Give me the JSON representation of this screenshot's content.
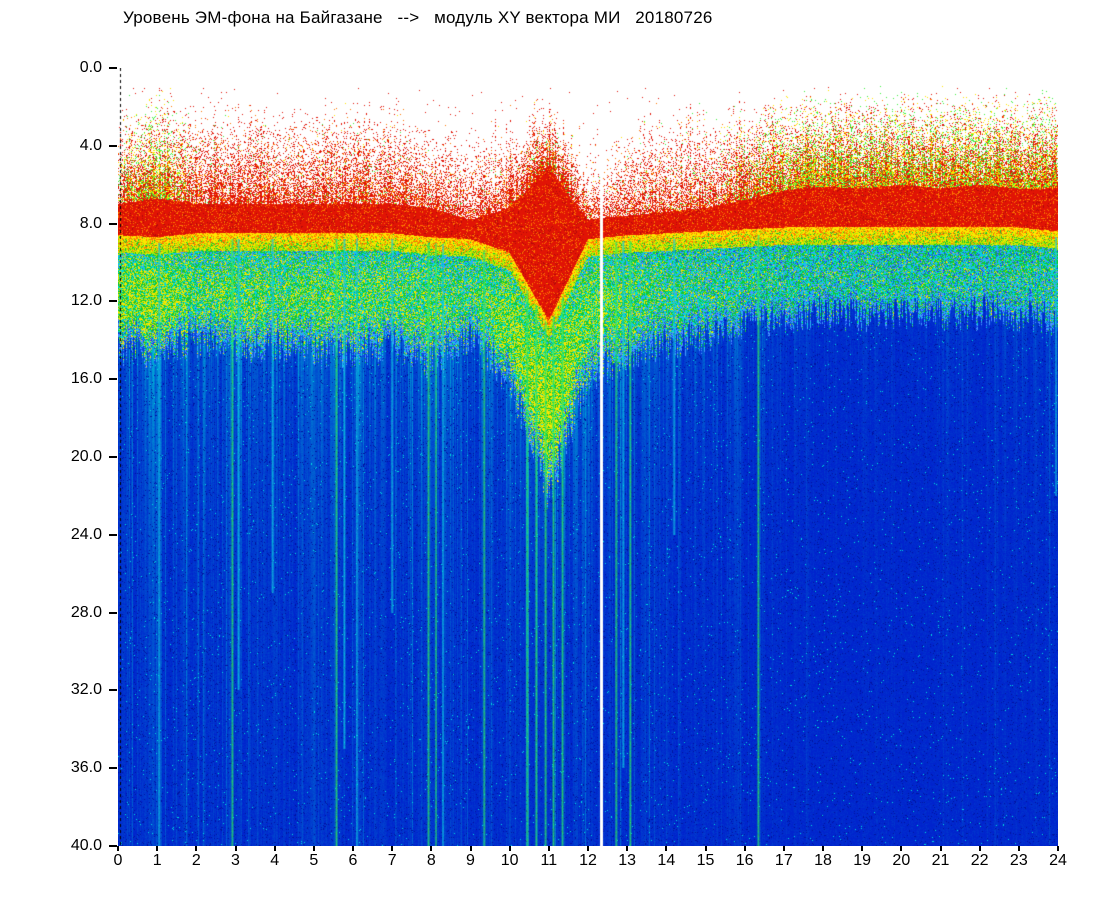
{
  "chart_data": {
    "type": "heatmap",
    "subtype": "spectrogram",
    "title": "Уровень ЭМ-фона на Байгазане   -->   модуль XY вектора МИ   20180726",
    "date": "20180726",
    "x_range": [
      0,
      24
    ],
    "y_range": [
      0,
      40
    ],
    "y_direction": "down",
    "grid": false,
    "legend": false,
    "x_ticks": [
      "0",
      "1",
      "2",
      "3",
      "4",
      "5",
      "6",
      "7",
      "8",
      "9",
      "10",
      "11",
      "12",
      "13",
      "14",
      "15",
      "16",
      "17",
      "18",
      "19",
      "20",
      "21",
      "22",
      "23",
      "24"
    ],
    "y_ticks": [
      "0.0",
      "4.0",
      "8.0",
      "12.0",
      "16.0",
      "20.0",
      "24.0",
      "28.0",
      "32.0",
      "36.0",
      "40.0"
    ],
    "palette": {
      "white": "#ffffff",
      "red": "#e11405",
      "red_dark": "#b40a0a",
      "orange": "#ff7700",
      "yellow": "#ffe600",
      "yellow_green": "#b4e600",
      "green": "#14c832",
      "green_bright": "#3cf03c",
      "cyan": "#00dcdc",
      "blue_light": "#4696ff",
      "blue": "#1446e6",
      "blue_deep": "#0023cd",
      "blue_navy": "#0014a0",
      "black": "#000000"
    },
    "profile_hours": [
      0,
      1,
      2,
      3,
      4,
      5,
      6,
      7,
      8,
      9,
      10,
      11,
      12,
      13,
      14,
      15,
      16,
      17,
      18,
      19,
      20,
      21,
      22,
      23,
      24
    ],
    "speckle_top_depth": [
      2.4,
      1.6,
      2.3,
      2.0,
      2.3,
      2.2,
      2.0,
      2.3,
      2.7,
      3.6,
      3.4,
      2.4,
      5.0,
      3.4,
      3.0,
      2.8,
      2.2,
      1.5,
      1.2,
      1.5,
      1.2,
      1.5,
      1.2,
      1.5,
      1.2
    ],
    "dense_red_top_depth": [
      7.0,
      6.7,
      7.0,
      7.0,
      7.0,
      7.0,
      7.0,
      7.0,
      7.2,
      7.8,
      7.2,
      5.2,
      7.8,
      7.6,
      7.4,
      7.2,
      6.8,
      6.3,
      6.1,
      6.2,
      6.0,
      6.2,
      6.0,
      6.2,
      6.2
    ],
    "dense_red_bottom_depth": [
      8.6,
      8.7,
      8.5,
      8.5,
      8.5,
      8.5,
      8.5,
      8.5,
      8.7,
      8.8,
      9.5,
      13.0,
      8.8,
      8.6,
      8.5,
      8.4,
      8.3,
      8.2,
      8.2,
      8.2,
      8.2,
      8.2,
      8.2,
      8.2,
      8.4
    ],
    "green_band_bottom_depth": [
      14.8,
      14.6,
      14.0,
      14.6,
      14.2,
      14.5,
      14.8,
      14.3,
      15.2,
      14.0,
      16.0,
      22.0,
      16.0,
      14.8,
      14.2,
      13.8,
      13.2,
      12.8,
      12.6,
      12.8,
      12.6,
      12.8,
      12.6,
      12.8,
      13.0
    ],
    "yellow_fraction_in_band": [
      0.45,
      0.55,
      0.28,
      0.32,
      0.28,
      0.3,
      0.32,
      0.28,
      0.28,
      0.22,
      0.45,
      0.65,
      0.38,
      0.28,
      0.18,
      0.14,
      0.12,
      0.1,
      0.08,
      0.08,
      0.08,
      0.08,
      0.08,
      0.08,
      0.1
    ],
    "upper_green_yellow_fraction": [
      0.3,
      0.55,
      0.12,
      0.06,
      0.06,
      0.06,
      0.1,
      0.06,
      0.05,
      0.04,
      0.06,
      0.15,
      0.05,
      0.06,
      0.1,
      0.12,
      0.25,
      0.5,
      0.55,
      0.5,
      0.55,
      0.5,
      0.55,
      0.5,
      0.45
    ],
    "speckle_density": [
      0.5,
      0.8,
      0.45,
      0.5,
      0.45,
      0.45,
      0.5,
      0.45,
      0.4,
      0.28,
      0.5,
      0.85,
      0.3,
      0.35,
      0.4,
      0.45,
      0.55,
      0.75,
      0.85,
      0.8,
      0.85,
      0.8,
      0.85,
      0.8,
      0.85
    ],
    "streak_strength": [
      0.8,
      0.9,
      0.7,
      0.85,
      0.75,
      0.8,
      0.85,
      0.8,
      0.95,
      0.75,
      0.95,
      1.0,
      0.85,
      0.7,
      0.6,
      0.5,
      0.45,
      0.3,
      0.25,
      0.25,
      0.22,
      0.25,
      0.22,
      0.3,
      0.4
    ],
    "strong_streaks": [
      {
        "hour": 1.05,
        "to_depth": 40,
        "color": "cyan"
      },
      {
        "hour": 2.92,
        "to_depth": 40,
        "color": "green"
      },
      {
        "hour": 3.08,
        "to_depth": 32,
        "color": "cyan"
      },
      {
        "hour": 3.95,
        "to_depth": 27,
        "color": "cyan"
      },
      {
        "hour": 5.58,
        "to_depth": 40,
        "color": "green"
      },
      {
        "hour": 5.78,
        "to_depth": 35,
        "color": "cyan"
      },
      {
        "hour": 6.1,
        "to_depth": 40,
        "color": "cyan"
      },
      {
        "hour": 7.0,
        "to_depth": 28,
        "color": "cyan"
      },
      {
        "hour": 7.93,
        "to_depth": 40,
        "color": "green"
      },
      {
        "hour": 8.12,
        "to_depth": 40,
        "color": "green"
      },
      {
        "hour": 8.3,
        "to_depth": 40,
        "color": "cyan"
      },
      {
        "hour": 9.35,
        "to_depth": 40,
        "color": "green"
      },
      {
        "hour": 10.45,
        "to_depth": 40,
        "color": "green"
      },
      {
        "hour": 10.68,
        "to_depth": 40,
        "color": "green"
      },
      {
        "hour": 10.92,
        "to_depth": 40,
        "color": "green"
      },
      {
        "hour": 11.12,
        "to_depth": 40,
        "color": "green"
      },
      {
        "hour": 11.35,
        "to_depth": 40,
        "color": "green"
      },
      {
        "hour": 12.72,
        "to_depth": 40,
        "color": "green"
      },
      {
        "hour": 12.9,
        "to_depth": 36,
        "color": "cyan"
      },
      {
        "hour": 13.08,
        "to_depth": 40,
        "color": "green"
      },
      {
        "hour": 14.2,
        "to_depth": 24,
        "color": "cyan"
      },
      {
        "hour": 16.35,
        "to_depth": 40,
        "color": "green"
      },
      {
        "hour": 23.95,
        "to_depth": 22,
        "color": "cyan"
      }
    ],
    "disturbance": {
      "hours": [
        10.3,
        11.5
      ],
      "red_to_depth": 13,
      "green_to_depth": 22
    },
    "data_gap_hours": [
      12.35
    ],
    "left_dotted_axis_line": true
  }
}
